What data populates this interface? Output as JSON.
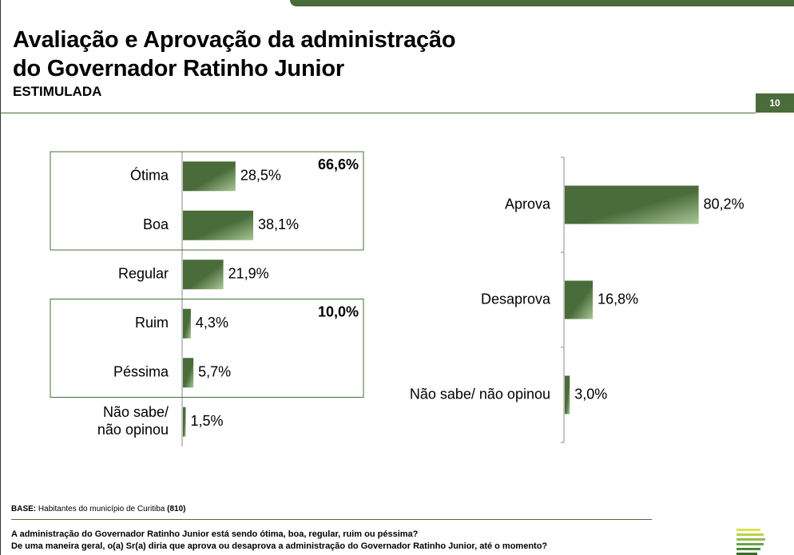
{
  "header": {
    "title_line1": "Avaliação e Aprovação da administração",
    "title_line2": "do Governador Ratinho Junior",
    "subtitle": "ESTIMULADA",
    "page_number": "10"
  },
  "colors": {
    "bar": "#4a6b3a",
    "bar_light": "#9dc08a",
    "accent": "#4a6b3a"
  },
  "chart_data": [
    {
      "type": "bar",
      "orientation": "horizontal",
      "categories": [
        "Ótima",
        "Boa",
        "Regular",
        "Ruim",
        "Péssima",
        "Não sabe/ não opinou"
      ],
      "values": [
        28.5,
        38.1,
        21.9,
        4.3,
        5.7,
        1.5
      ],
      "value_labels": [
        "28,5%",
        "38,1%",
        "21,9%",
        "4,3%",
        "5,7%",
        "1,5%"
      ],
      "groups": [
        {
          "label": "66,6%",
          "categories": [
            "Ótima",
            "Boa"
          ]
        },
        {
          "label": "10,0%",
          "categories": [
            "Ruim",
            "Péssima"
          ]
        }
      ]
    },
    {
      "type": "bar",
      "orientation": "horizontal",
      "categories": [
        "Aprova",
        "Desaprova",
        "Não sabe/ não opinou"
      ],
      "values": [
        80.2,
        16.8,
        3.0
      ],
      "value_labels": [
        "80,2%",
        "16,8%",
        "3,0%"
      ]
    }
  ],
  "footer": {
    "base_label": "BASE:",
    "base_text": "Habitantes do município de Curitiba",
    "base_count": "(810)",
    "question_line1": "A administração do Governador Ratinho Junior está sendo ótima, boa, regular, ruim ou péssima?",
    "question_line2": "De uma maneira geral, o(a) Sr(a) diria que aprova ou desaprova a administração do Governador Ratinho Junior, até o momento?"
  }
}
